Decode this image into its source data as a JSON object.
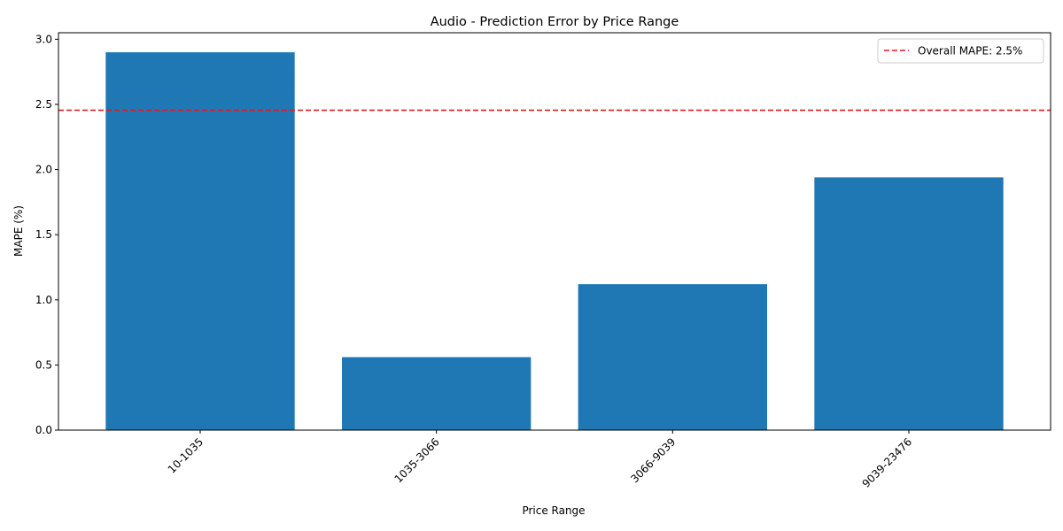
{
  "chart_data": {
    "type": "bar",
    "title": "Audio - Prediction Error by Price Range",
    "xlabel": "Price Range",
    "ylabel": "MAPE (%)",
    "categories": [
      "10-1035",
      "1035-3066",
      "3066-9039",
      "9039-23476"
    ],
    "values": [
      2.9,
      0.56,
      1.12,
      1.94
    ],
    "ylim": [
      0,
      3.05
    ],
    "yticks": [
      0.0,
      0.5,
      1.0,
      1.5,
      2.0,
      2.5,
      3.0
    ],
    "ytick_labels": [
      "0.0",
      "0.5",
      "1.0",
      "1.5",
      "2.0",
      "2.5",
      "3.0"
    ],
    "xtick_rotation": 45,
    "bar_color": "#1f77b4",
    "reference_line": {
      "value": 2.455,
      "label": "Overall MAPE: 2.5%",
      "color": "#e31a1c",
      "style": "dashed"
    },
    "legend": {
      "position": "top-right",
      "entries": [
        "Overall MAPE: 2.5%"
      ]
    },
    "grid": false
  }
}
